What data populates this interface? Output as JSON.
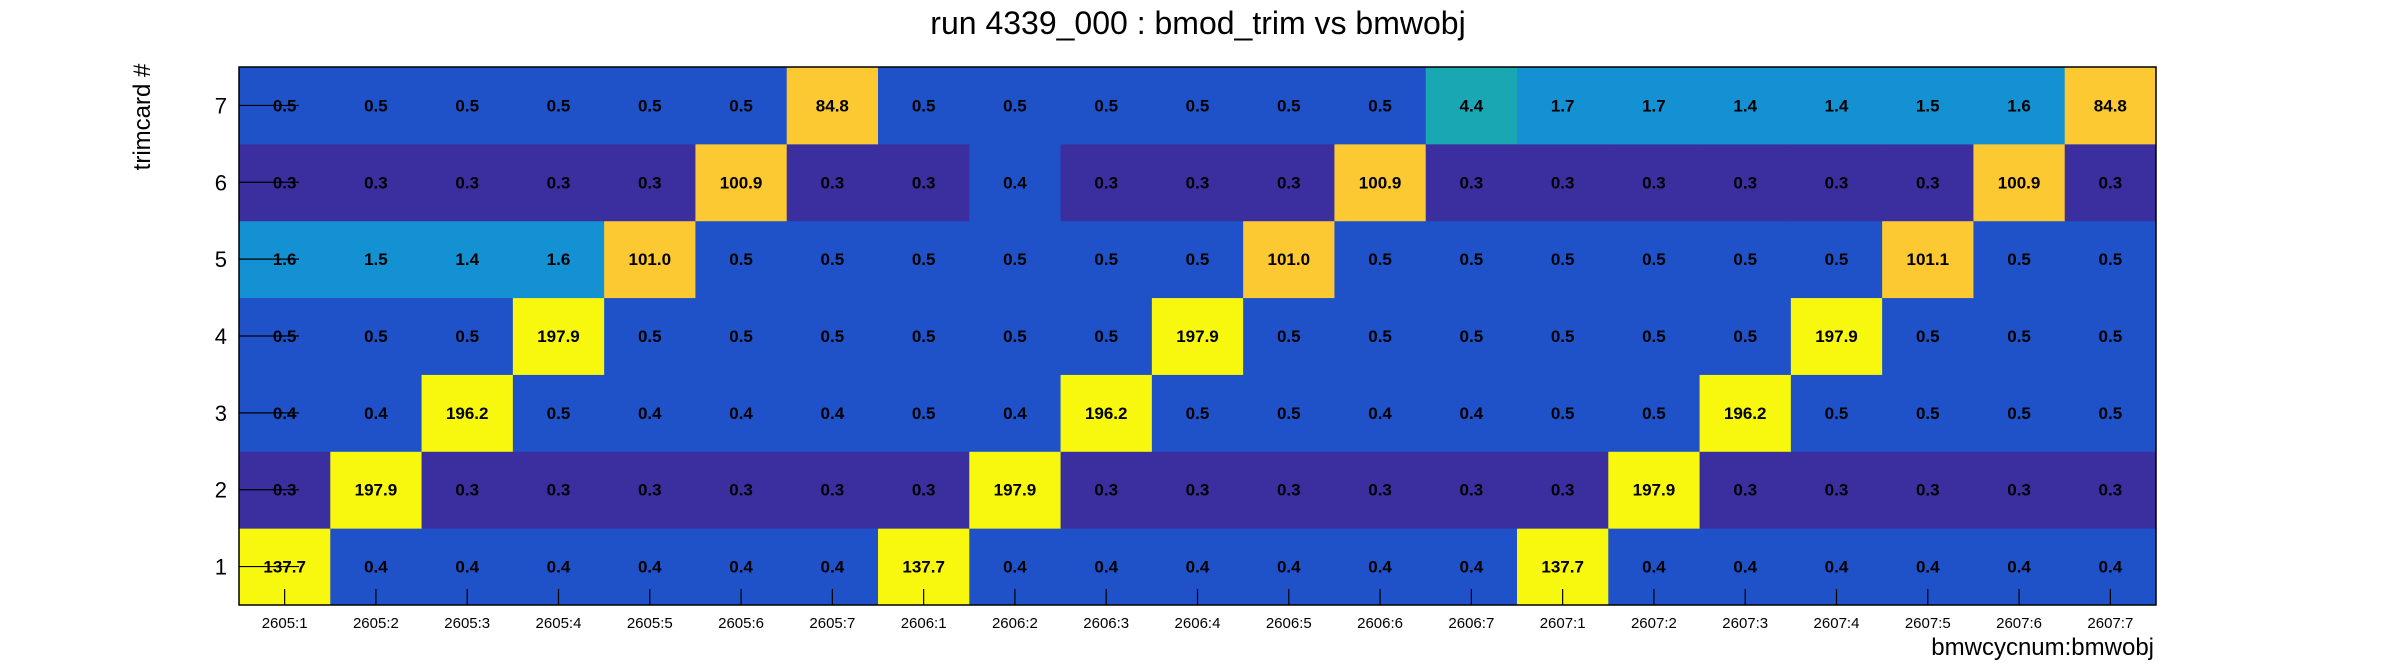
{
  "chart_data": {
    "type": "heatmap",
    "title": "run 4339_000 : bmod_trim vs bmwobj",
    "xlabel": "bmwcycnum:bmwobj",
    "ylabel": "trimcard #",
    "x_categories": [
      "2605:1",
      "2605:2",
      "2605:3",
      "2605:4",
      "2605:5",
      "2605:6",
      "2605:7",
      "2606:1",
      "2606:2",
      "2606:3",
      "2606:4",
      "2606:5",
      "2606:6",
      "2606:7",
      "2607:1",
      "2607:2",
      "2607:3",
      "2607:4",
      "2607:5",
      "2607:6",
      "2607:7"
    ],
    "y_categories": [
      "1",
      "2",
      "3",
      "4",
      "5",
      "6",
      "7"
    ],
    "values": [
      [
        "137.7",
        "0.4",
        "0.4",
        "0.4",
        "0.4",
        "0.4",
        "0.4",
        "137.7",
        "0.4",
        "0.4",
        "0.4",
        "0.4",
        "0.4",
        "0.4",
        "137.7",
        "0.4",
        "0.4",
        "0.4",
        "0.4",
        "0.4",
        "0.4"
      ],
      [
        "0.3",
        "197.9",
        "0.3",
        "0.3",
        "0.3",
        "0.3",
        "0.3",
        "0.3",
        "197.9",
        "0.3",
        "0.3",
        "0.3",
        "0.3",
        "0.3",
        "0.3",
        "197.9",
        "0.3",
        "0.3",
        "0.3",
        "0.3",
        "0.3"
      ],
      [
        "0.4",
        "0.4",
        "196.2",
        "0.5",
        "0.4",
        "0.4",
        "0.4",
        "0.5",
        "0.4",
        "196.2",
        "0.5",
        "0.5",
        "0.4",
        "0.4",
        "0.5",
        "0.5",
        "196.2",
        "0.5",
        "0.5",
        "0.5",
        "0.5"
      ],
      [
        "0.5",
        "0.5",
        "0.5",
        "197.9",
        "0.5",
        "0.5",
        "0.5",
        "0.5",
        "0.5",
        "0.5",
        "197.9",
        "0.5",
        "0.5",
        "0.5",
        "0.5",
        "0.5",
        "0.5",
        "197.9",
        "0.5",
        "0.5",
        "0.5"
      ],
      [
        "1.6",
        "1.5",
        "1.4",
        "1.6",
        "101.0",
        "0.5",
        "0.5",
        "0.5",
        "0.5",
        "0.5",
        "0.5",
        "101.0",
        "0.5",
        "0.5",
        "0.5",
        "0.5",
        "0.5",
        "0.5",
        "101.1",
        "0.5",
        "0.5"
      ],
      [
        "0.3",
        "0.3",
        "0.3",
        "0.3",
        "0.3",
        "100.9",
        "0.3",
        "0.3",
        "0.4",
        "0.3",
        "0.3",
        "0.3",
        "100.9",
        "0.3",
        "0.3",
        "0.3",
        "0.3",
        "0.3",
        "0.3",
        "100.9",
        "0.3"
      ],
      [
        "0.5",
        "0.5",
        "0.5",
        "0.5",
        "0.5",
        "0.5",
        "84.8",
        "0.5",
        "0.5",
        "0.5",
        "0.5",
        "0.5",
        "0.5",
        "4.4",
        "1.7",
        "1.7",
        "1.4",
        "1.4",
        "1.5",
        "1.6",
        "84.8"
      ]
    ],
    "colors": {
      "low": "#3b2fa0",
      "mid_low": "#1f52c8",
      "mid": "#1391d2",
      "teal": "#1aa7b4",
      "orange": "#fcc933",
      "high": "#f8f80e"
    },
    "colorscale": "parula",
    "grid": false,
    "legend": "none"
  }
}
